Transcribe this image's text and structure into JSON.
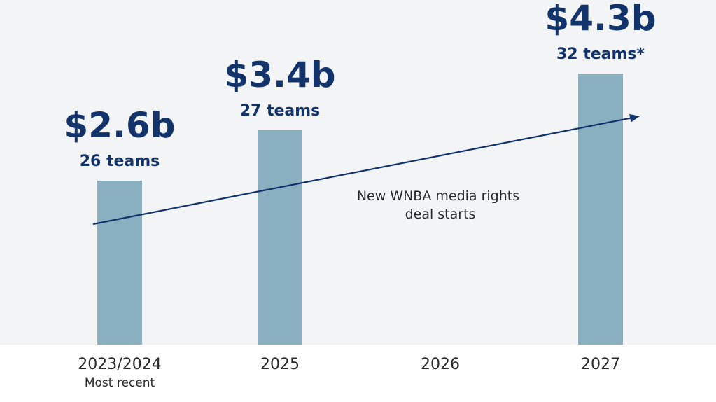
{
  "chart_data": {
    "type": "bar",
    "categories": [
      "2023/2024",
      "2025",
      "2026",
      "2027"
    ],
    "category_sublabels": [
      "Most recent",
      "",
      "",
      ""
    ],
    "values": [
      2.6,
      3.4,
      null,
      4.3
    ],
    "value_labels": [
      "$2.6b",
      "$3.4b",
      "",
      "$4.3b"
    ],
    "team_labels": [
      "26 teams",
      "27 teams",
      "",
      "32 teams*"
    ],
    "annotation": [
      "New WNBA media rights",
      "deal starts"
    ],
    "ylim": [
      0,
      4.8
    ],
    "trend_arrow": true,
    "colors": {
      "background": "#f3f4f6",
      "bar": "#8aafc0",
      "text_primary": "#13336b",
      "arrow": "#13336b"
    }
  }
}
